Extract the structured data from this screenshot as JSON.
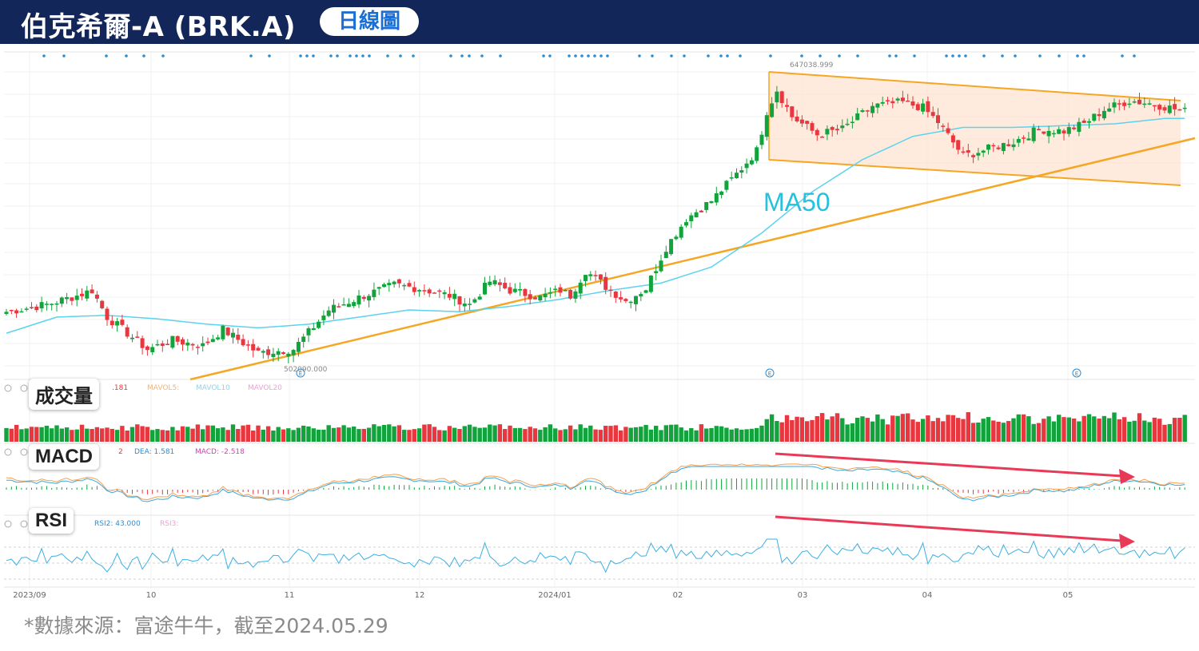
{
  "header": {
    "title": "伯克希爾-A (BRK.A)",
    "badge": "日線圖"
  },
  "panels": {
    "volume_label": "成交量",
    "macd_label": "MACD",
    "rsi_label": "RSI"
  },
  "indicators": {
    "vol_value": ".181",
    "mavol5": "MAVOL5:",
    "mavol10": "MAVOL10",
    "mavol20": "MAVOL20",
    "macd_dif": "2",
    "dea": "DEA: 1.581",
    "macd": "MACD: -2.518",
    "rsi2": "RSI2: 43.000",
    "rsi3": "RSI3:"
  },
  "annotations": {
    "ma50_label": "MA50",
    "high_price": "647038.999",
    "low_price": "502090.000",
    "earnings_marker": "E"
  },
  "footer": {
    "source": "*數據來源：富途牛牛，截至2024.05.29"
  },
  "colors": {
    "up": "#13a33d",
    "down": "#e8373f",
    "ma50": "#5bd3ee",
    "trendline": "#f5a623",
    "channel_fill": "#fde3cf",
    "arrow": "#e83a57",
    "header_bg": "#12265a"
  },
  "chart_data": {
    "type": "candlestick",
    "title": "伯克希爾-A (BRK.A) 日線圖",
    "x_ticks": [
      "2023/09",
      "10",
      "11",
      "12",
      "2024/01",
      "02",
      "03",
      "04",
      "05"
    ],
    "price_markers": {
      "high": 647038.999,
      "low": 502090.0
    },
    "close_path": [
      [
        0,
        523000
      ],
      [
        8,
        527000
      ],
      [
        14,
        532000
      ],
      [
        17,
        535000
      ],
      [
        20,
        520000
      ],
      [
        28,
        502000
      ],
      [
        33,
        507000
      ],
      [
        39,
        504000
      ],
      [
        43,
        513000
      ],
      [
        50,
        500000
      ],
      [
        57,
        502090
      ],
      [
        64,
        524000
      ],
      [
        71,
        532000
      ],
      [
        77,
        538000
      ],
      [
        82,
        536000
      ],
      [
        88,
        532000
      ],
      [
        92,
        527000
      ],
      [
        96,
        540000
      ],
      [
        100,
        535000
      ],
      [
        106,
        531000
      ],
      [
        110,
        535000
      ],
      [
        112,
        532000
      ],
      [
        115,
        546000
      ],
      [
        119,
        537000
      ],
      [
        123,
        529000
      ],
      [
        127,
        536000
      ],
      [
        131,
        559000
      ],
      [
        135,
        575000
      ],
      [
        140,
        585000
      ],
      [
        145,
        600000
      ],
      [
        149,
        613000
      ],
      [
        151,
        635000
      ],
      [
        153,
        647000
      ],
      [
        156,
        632000
      ],
      [
        161,
        622000
      ],
      [
        166,
        625000
      ],
      [
        172,
        638000
      ],
      [
        178,
        640000
      ],
      [
        182,
        637000
      ],
      [
        185,
        629000
      ],
      [
        190,
        610000
      ],
      [
        195,
        614000
      ],
      [
        200,
        618000
      ],
      [
        205,
        625000
      ],
      [
        210,
        624000
      ],
      [
        214,
        628000
      ],
      [
        218,
        636000
      ],
      [
        223,
        641000
      ],
      [
        228,
        639000
      ],
      [
        234,
        635000
      ]
    ],
    "ma50_path": [
      [
        0,
        511000
      ],
      [
        10,
        520000
      ],
      [
        20,
        521000
      ],
      [
        30,
        519000
      ],
      [
        40,
        516000
      ],
      [
        50,
        514000
      ],
      [
        60,
        516000
      ],
      [
        70,
        520000
      ],
      [
        80,
        524000
      ],
      [
        90,
        523000
      ],
      [
        100,
        526000
      ],
      [
        110,
        530000
      ],
      [
        120,
        535000
      ],
      [
        130,
        539000
      ],
      [
        140,
        548000
      ],
      [
        150,
        567000
      ],
      [
        160,
        590000
      ],
      [
        170,
        608000
      ],
      [
        180,
        621000
      ],
      [
        190,
        626000
      ],
      [
        200,
        626000
      ],
      [
        210,
        627000
      ],
      [
        220,
        628000
      ],
      [
        230,
        631000
      ],
      [
        234,
        631000
      ]
    ],
    "volume": {
      "series": [
        "MAVOL5",
        "MAVOL10",
        "MAVOL20"
      ]
    },
    "macd": {
      "DEA": 1.581,
      "MACD": -2.518
    },
    "rsi": {
      "RSI2": 43.0
    }
  }
}
